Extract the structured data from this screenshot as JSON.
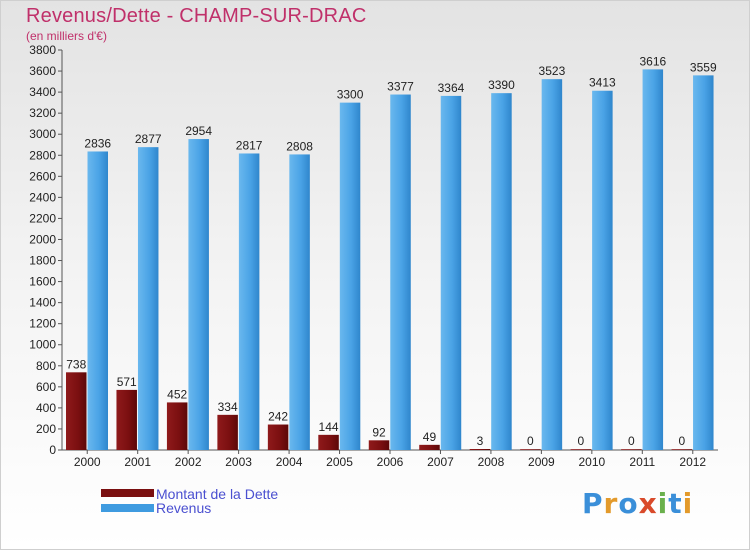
{
  "header": {
    "title": "Revenus/Dette - CHAMP-SUR-DRAC",
    "subtitle": "(en milliers d'€)"
  },
  "chart_data": {
    "type": "bar",
    "title": "Revenus/Dette - CHAMP-SUR-DRAC",
    "subtitle": "(en milliers d'€)",
    "categories": [
      "2000",
      "2001",
      "2002",
      "2003",
      "2004",
      "2005",
      "2006",
      "2007",
      "2008",
      "2009",
      "2010",
      "2011",
      "2012"
    ],
    "series": [
      {
        "name": "Montant de la Dette",
        "color": "#7a0f10",
        "values": [
          738,
          571,
          452,
          334,
          242,
          144,
          92,
          49,
          3,
          0,
          0,
          0,
          0
        ]
      },
      {
        "name": "Revenus",
        "color": "#3f9be0",
        "values": [
          2836,
          2877,
          2954,
          2817,
          2808,
          3300,
          3377,
          3364,
          3390,
          3523,
          3413,
          3616,
          3559
        ]
      }
    ],
    "ylim": [
      0,
      3800
    ],
    "yticks": [
      0,
      200,
      400,
      600,
      800,
      1000,
      1200,
      1400,
      1600,
      1800,
      2000,
      2200,
      2400,
      2600,
      2800,
      3000,
      3200,
      3400,
      3600,
      3800
    ],
    "legend_position": "bottom-left",
    "grid": false,
    "data_labels": true
  },
  "legend": {
    "items": [
      {
        "label": "Montant de la Dette",
        "color": "#7a0f10"
      },
      {
        "label": "Revenus",
        "color": "#3f9be0"
      }
    ]
  },
  "logo": {
    "text": "Proxiti",
    "letters": [
      "P",
      "r",
      "o",
      "x",
      "i",
      "t",
      "i"
    ],
    "colors": [
      "#3a8fd9",
      "#e39a2b",
      "#3a8fd9",
      "#d94a2a",
      "#6ab04c",
      "#3a8fd9",
      "#e39a2b"
    ]
  }
}
